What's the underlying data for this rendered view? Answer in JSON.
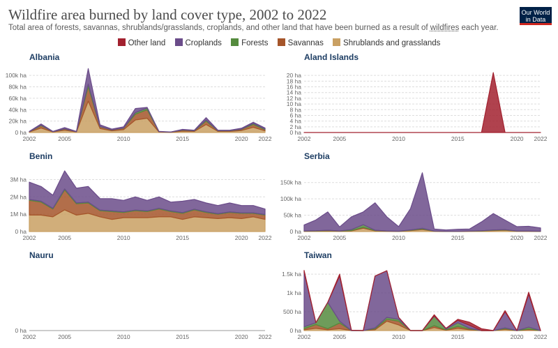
{
  "title": "Wildfire area burned by land cover type, 2002 to 2022",
  "subtitle_pre": "Total area of forests, savannas, shrublands/grasslands, croplands, and other land that have been burned as a result of ",
  "subtitle_link": "wildfires",
  "subtitle_post": " each year.",
  "logo": {
    "line1": "Our World",
    "line2": "in Data",
    "bg": "#002147",
    "accent": "#ce261e"
  },
  "legend": [
    {
      "name": "Other land",
      "color": "#a2212f"
    },
    {
      "name": "Croplands",
      "color": "#6b4c8a"
    },
    {
      "name": "Forests",
      "color": "#558b3e"
    },
    {
      "name": "Savannas",
      "color": "#a5552a"
    },
    {
      "name": "Shrublands and grasslands",
      "color": "#c9a063"
    }
  ],
  "chart_data": [
    {
      "type": "area",
      "stacked": true,
      "title": "Albania",
      "x": [
        2002,
        2003,
        2004,
        2005,
        2006,
        2007,
        2008,
        2009,
        2010,
        2011,
        2012,
        2013,
        2014,
        2015,
        2016,
        2017,
        2018,
        2019,
        2020,
        2021,
        2022
      ],
      "ylim": [
        0,
        110000
      ],
      "yticks": [
        0,
        20000,
        40000,
        60000,
        80000,
        100000
      ],
      "ytick_labels": [
        "0 ha",
        "20k ha",
        "40k ha",
        "60k ha",
        "80k ha",
        "100k ha"
      ],
      "xtick_labels": [
        "2002",
        "2005",
        "2010",
        "2015",
        "2020",
        "2022"
      ],
      "series": [
        {
          "name": "Shrublands and grasslands",
          "values": [
            1000,
            8000,
            1000,
            4000,
            1000,
            55000,
            7000,
            3000,
            5000,
            22000,
            25000,
            1000,
            500,
            2500,
            2000,
            14000,
            2000,
            2000,
            3500,
            9000,
            3000
          ]
        },
        {
          "name": "Savannas",
          "values": [
            500,
            4000,
            500,
            2000,
            500,
            25000,
            3000,
            1500,
            2500,
            10000,
            15000,
            500,
            200,
            1500,
            1000,
            6000,
            1000,
            1000,
            2000,
            5000,
            2000
          ]
        },
        {
          "name": "Forests",
          "values": [
            0,
            1000,
            0,
            500,
            0,
            5000,
            500,
            300,
            500,
            3000,
            3000,
            0,
            0,
            500,
            300,
            2000,
            300,
            300,
            500,
            2000,
            1000
          ]
        },
        {
          "name": "Croplands",
          "values": [
            500,
            2000,
            500,
            2000,
            500,
            27000,
            3000,
            1200,
            2000,
            7000,
            1000,
            500,
            300,
            1000,
            700,
            4000,
            700,
            700,
            1500,
            2000,
            2000
          ]
        },
        {
          "name": "Other land",
          "values": [
            0,
            0,
            0,
            0,
            0,
            0,
            0,
            0,
            0,
            0,
            0,
            0,
            0,
            0,
            0,
            0,
            0,
            0,
            0,
            0,
            0
          ]
        }
      ]
    },
    {
      "type": "area",
      "stacked": true,
      "title": "Aland Islands",
      "x": [
        2002,
        2003,
        2004,
        2005,
        2006,
        2007,
        2008,
        2009,
        2010,
        2011,
        2012,
        2013,
        2014,
        2015,
        2016,
        2017,
        2018,
        2019,
        2020,
        2021,
        2022
      ],
      "ylim": [
        0,
        22000
      ],
      "yticks": [
        0,
        2000,
        4000,
        6000,
        8000,
        10000,
        12000,
        14000,
        16000,
        18000,
        20000
      ],
      "ytick_labels": [
        "0 ha",
        "2 ha",
        "4 ha",
        "6 ha",
        "8 ha",
        "10 ha",
        "12 ha",
        "14 ha",
        "16 ha",
        "18 ha",
        "20 ha"
      ],
      "ytick_scale": 0.001,
      "xtick_labels": [
        "2002",
        "2005",
        "2010",
        "2015",
        "2020",
        "2022"
      ],
      "series": [
        {
          "name": "Shrublands and grasslands",
          "values": [
            0,
            0,
            0,
            0,
            0,
            0,
            0,
            0,
            0,
            0,
            0,
            0,
            0,
            0,
            0,
            0,
            0,
            0,
            0,
            0,
            0
          ]
        },
        {
          "name": "Savannas",
          "values": [
            0,
            0,
            0,
            0,
            0,
            0,
            0,
            0,
            0,
            0,
            0,
            0,
            0,
            0,
            0,
            0,
            0,
            0,
            0,
            0,
            0
          ]
        },
        {
          "name": "Forests",
          "values": [
            0,
            0,
            0,
            0,
            0,
            0,
            0,
            0,
            0,
            0,
            0,
            0,
            0,
            0,
            0,
            0,
            0,
            0,
            0,
            0,
            0
          ]
        },
        {
          "name": "Croplands",
          "values": [
            0,
            0,
            0,
            0,
            0,
            0,
            0,
            0,
            0,
            0,
            0,
            0,
            0,
            0,
            0,
            0,
            0,
            0,
            0,
            0,
            0
          ]
        },
        {
          "name": "Other land",
          "values": [
            0,
            0,
            0,
            0,
            0,
            0,
            0,
            0,
            0,
            0,
            0,
            0,
            0,
            0,
            0,
            0,
            21000,
            0,
            0,
            0,
            0
          ]
        }
      ]
    },
    {
      "type": "area",
      "stacked": true,
      "title": "Benin",
      "x": [
        2002,
        2003,
        2004,
        2005,
        2006,
        2007,
        2008,
        2009,
        2010,
        2011,
        2012,
        2013,
        2014,
        2015,
        2016,
        2017,
        2018,
        2019,
        2020,
        2021,
        2022
      ],
      "ylim": [
        0,
        3300000
      ],
      "yticks": [
        0,
        1000000,
        2000000,
        3000000
      ],
      "ytick_labels": [
        "0 ha",
        "1M ha",
        "2M ha",
        "3M ha"
      ],
      "xtick_labels": [
        "2002",
        "2005",
        "2010",
        "2015",
        "2020",
        "2022"
      ],
      "series": [
        {
          "name": "Shrublands and grasslands",
          "values": [
            950000,
            950000,
            850000,
            1250000,
            950000,
            1050000,
            850000,
            700000,
            800000,
            800000,
            800000,
            850000,
            850000,
            700000,
            850000,
            800000,
            750000,
            800000,
            750000,
            850000,
            700000
          ]
        },
        {
          "name": "Savannas",
          "values": [
            850000,
            750000,
            450000,
            1150000,
            650000,
            600000,
            350000,
            450000,
            300000,
            400000,
            350000,
            450000,
            300000,
            350000,
            400000,
            300000,
            250000,
            300000,
            300000,
            200000,
            250000
          ]
        },
        {
          "name": "Forests",
          "values": [
            50000,
            50000,
            40000,
            60000,
            50000,
            50000,
            40000,
            40000,
            40000,
            40000,
            40000,
            40000,
            40000,
            40000,
            40000,
            40000,
            30000,
            30000,
            30000,
            30000,
            30000
          ]
        },
        {
          "name": "Croplands",
          "values": [
            1000000,
            850000,
            760000,
            1040000,
            850000,
            900000,
            660000,
            710000,
            660000,
            760000,
            610000,
            660000,
            510000,
            660000,
            560000,
            510000,
            470000,
            520000,
            420000,
            420000,
            320000
          ]
        },
        {
          "name": "Other land",
          "values": [
            0,
            0,
            0,
            0,
            0,
            0,
            0,
            0,
            0,
            0,
            0,
            0,
            0,
            0,
            0,
            0,
            0,
            0,
            0,
            0,
            0
          ]
        }
      ]
    },
    {
      "type": "area",
      "stacked": true,
      "title": "Serbia",
      "x": [
        2002,
        2003,
        2004,
        2005,
        2006,
        2007,
        2008,
        2009,
        2010,
        2011,
        2012,
        2013,
        2014,
        2015,
        2016,
        2017,
        2018,
        2019,
        2020,
        2021,
        2022
      ],
      "ylim": [
        0,
        175000
      ],
      "yticks": [
        0,
        50000,
        100000,
        150000
      ],
      "ytick_labels": [
        "0 ha",
        "50k ha",
        "100k ha",
        "150k ha"
      ],
      "xtick_labels": [
        "2002",
        "2005",
        "2010",
        "2015",
        "2020",
        "2022"
      ],
      "series": [
        {
          "name": "Shrublands and grasslands",
          "values": [
            1000,
            1500,
            2000,
            1000,
            2000,
            10000,
            2000,
            1000,
            500,
            3000,
            6000,
            1000,
            500,
            500,
            1000,
            1500,
            3000,
            4000,
            1000,
            1000,
            500
          ]
        },
        {
          "name": "Savannas",
          "values": [
            500,
            500,
            1000,
            500,
            1000,
            3000,
            1000,
            500,
            200,
            1000,
            2000,
            300,
            200,
            200,
            300,
            500,
            1000,
            1000,
            300,
            300,
            200
          ]
        },
        {
          "name": "Forests",
          "values": [
            500,
            500,
            1000,
            500,
            3000,
            8000,
            1000,
            500,
            300,
            1000,
            2000,
            200,
            200,
            200,
            300,
            500,
            1000,
            1000,
            300,
            300,
            300
          ]
        },
        {
          "name": "Croplands",
          "values": [
            18000,
            33000,
            56000,
            12000,
            39000,
            39000,
            84000,
            43000,
            14000,
            65000,
            170000,
            6500,
            4100,
            6100,
            6400,
            27000,
            50000,
            29000,
            13400,
            14400,
            10000
          ]
        },
        {
          "name": "Other land",
          "values": [
            0,
            0,
            0,
            0,
            0,
            0,
            0,
            0,
            0,
            0,
            0,
            0,
            0,
            0,
            0,
            0,
            0,
            0,
            0,
            0,
            0
          ]
        }
      ]
    },
    {
      "type": "area",
      "stacked": true,
      "title": "Nauru",
      "x": [
        2002,
        2003,
        2004,
        2005,
        2006,
        2007,
        2008,
        2009,
        2010,
        2011,
        2012,
        2013,
        2014,
        2015,
        2016,
        2017,
        2018,
        2019,
        2020,
        2021,
        2022
      ],
      "ylim": [
        0,
        1
      ],
      "yticks": [
        0
      ],
      "ytick_labels": [
        "0 ha"
      ],
      "xtick_labels": [
        "2002",
        "2005",
        "2010",
        "2015",
        "2020",
        "2022"
      ],
      "series": [
        {
          "name": "Shrublands and grasslands",
          "values": [
            0,
            0,
            0,
            0,
            0,
            0,
            0,
            0,
            0,
            0,
            0,
            0,
            0,
            0,
            0,
            0,
            0,
            0,
            0,
            0,
            0
          ]
        },
        {
          "name": "Savannas",
          "values": [
            0,
            0,
            0,
            0,
            0,
            0,
            0,
            0,
            0,
            0,
            0,
            0,
            0,
            0,
            0,
            0,
            0,
            0,
            0,
            0,
            0
          ]
        },
        {
          "name": "Forests",
          "values": [
            0,
            0,
            0,
            0,
            0,
            0,
            0,
            0,
            0,
            0,
            0,
            0,
            0,
            0,
            0,
            0,
            0,
            0,
            0,
            0,
            0
          ]
        },
        {
          "name": "Croplands",
          "values": [
            0,
            0,
            0,
            0,
            0,
            0,
            0,
            0,
            0,
            0,
            0,
            0,
            0,
            0,
            0,
            0,
            0,
            0,
            0,
            0,
            0
          ]
        },
        {
          "name": "Other land",
          "values": [
            0,
            0,
            0,
            0,
            0,
            0,
            0,
            0,
            0,
            0,
            0,
            0,
            0,
            0,
            0,
            0,
            0,
            0,
            0,
            0,
            0
          ]
        }
      ],
      "zero_line_only": true
    },
    {
      "type": "area",
      "stacked": true,
      "title": "Taiwan",
      "x": [
        2002,
        2003,
        2004,
        2005,
        2006,
        2007,
        2008,
        2009,
        2010,
        2011,
        2012,
        2013,
        2014,
        2015,
        2016,
        2017,
        2018,
        2019,
        2020,
        2021,
        2022
      ],
      "ylim": [
        0,
        1650
      ],
      "yticks": [
        0,
        500,
        1000,
        1500
      ],
      "ytick_labels": [
        "0 ha",
        "500 ha",
        "1k ha",
        "1.5k ha"
      ],
      "xtick_labels": [
        "2002",
        "2005",
        "2010",
        "2015",
        "2020",
        "2022"
      ],
      "series": [
        {
          "name": "Shrublands and grasslands",
          "values": [
            20,
            60,
            20,
            50,
            0,
            0,
            20,
            250,
            150,
            0,
            0,
            80,
            10,
            60,
            20,
            0,
            0,
            30,
            0,
            20,
            0
          ]
        },
        {
          "name": "Savannas",
          "values": [
            30,
            100,
            30,
            150,
            0,
            0,
            30,
            50,
            100,
            0,
            0,
            50,
            10,
            50,
            20,
            0,
            0,
            20,
            0,
            20,
            0
          ]
        },
        {
          "name": "Forests",
          "values": [
            50,
            50,
            700,
            50,
            0,
            0,
            20,
            50,
            50,
            0,
            0,
            250,
            20,
            100,
            20,
            0,
            0,
            20,
            0,
            50,
            0
          ]
        },
        {
          "name": "Croplands",
          "values": [
            1450,
            0,
            0,
            1200,
            10,
            0,
            1380,
            1240,
            50,
            0,
            0,
            10,
            20,
            60,
            80,
            0,
            0,
            430,
            0,
            880,
            0
          ]
        },
        {
          "name": "Other land",
          "values": [
            50,
            0,
            0,
            50,
            0,
            0,
            0,
            0,
            0,
            0,
            0,
            30,
            0,
            30,
            80,
            50,
            0,
            30,
            0,
            50,
            0
          ]
        }
      ]
    }
  ]
}
